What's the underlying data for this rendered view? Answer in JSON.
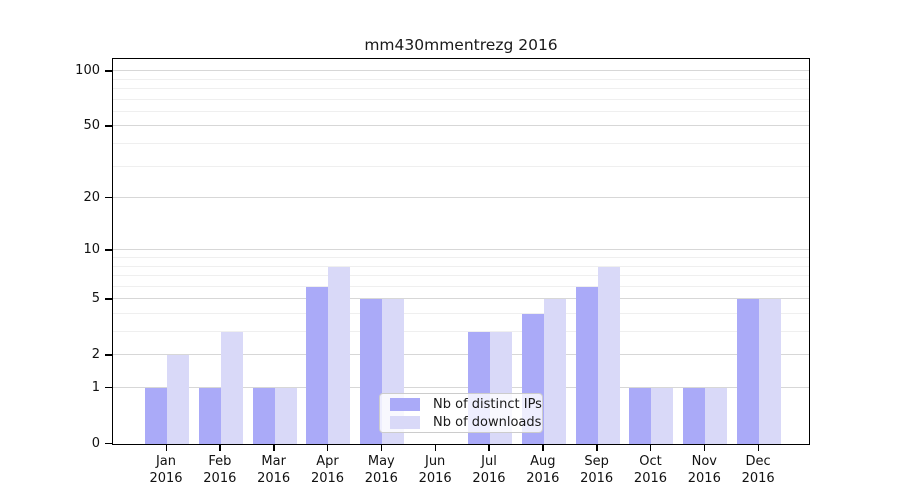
{
  "chart_data": {
    "type": "bar",
    "title": "mm430mmentrezg 2016",
    "categories": [
      "Jan",
      "Feb",
      "Mar",
      "Apr",
      "May",
      "Jun",
      "Jul",
      "Aug",
      "Sep",
      "Oct",
      "Nov",
      "Dec"
    ],
    "x_tick_second_line": "2016",
    "series": [
      {
        "name": "Nb of distinct IPs",
        "color": "#aaaaf8",
        "values": [
          1,
          1,
          1,
          6,
          5,
          0,
          3,
          4,
          6,
          1,
          1,
          5
        ]
      },
      {
        "name": "Nb of downloads",
        "color": "#d9d9f8",
        "values": [
          2,
          3,
          1,
          8,
          5,
          0,
          3,
          5,
          8,
          1,
          1,
          5
        ]
      }
    ],
    "scale": "log1p",
    "y_axis": {
      "tick_values": [
        100,
        50,
        20,
        10,
        5,
        2,
        1,
        0
      ],
      "tick_labels": [
        "100",
        "50",
        "20",
        "10",
        "5",
        "2",
        "1",
        "0"
      ],
      "minor_gridline_values": [
        3,
        4,
        6,
        7,
        8,
        9,
        30,
        40,
        60,
        70,
        80,
        90
      ],
      "ylim": [
        0,
        120
      ]
    },
    "grid": true,
    "legend_position": "inside-bottom-center",
    "colors": {
      "axis": "#000000",
      "major_grid": "#d7d7d7",
      "minor_grid": "#efefef",
      "text": "#1a1a1a",
      "legend_border": "#cccccc"
    }
  }
}
